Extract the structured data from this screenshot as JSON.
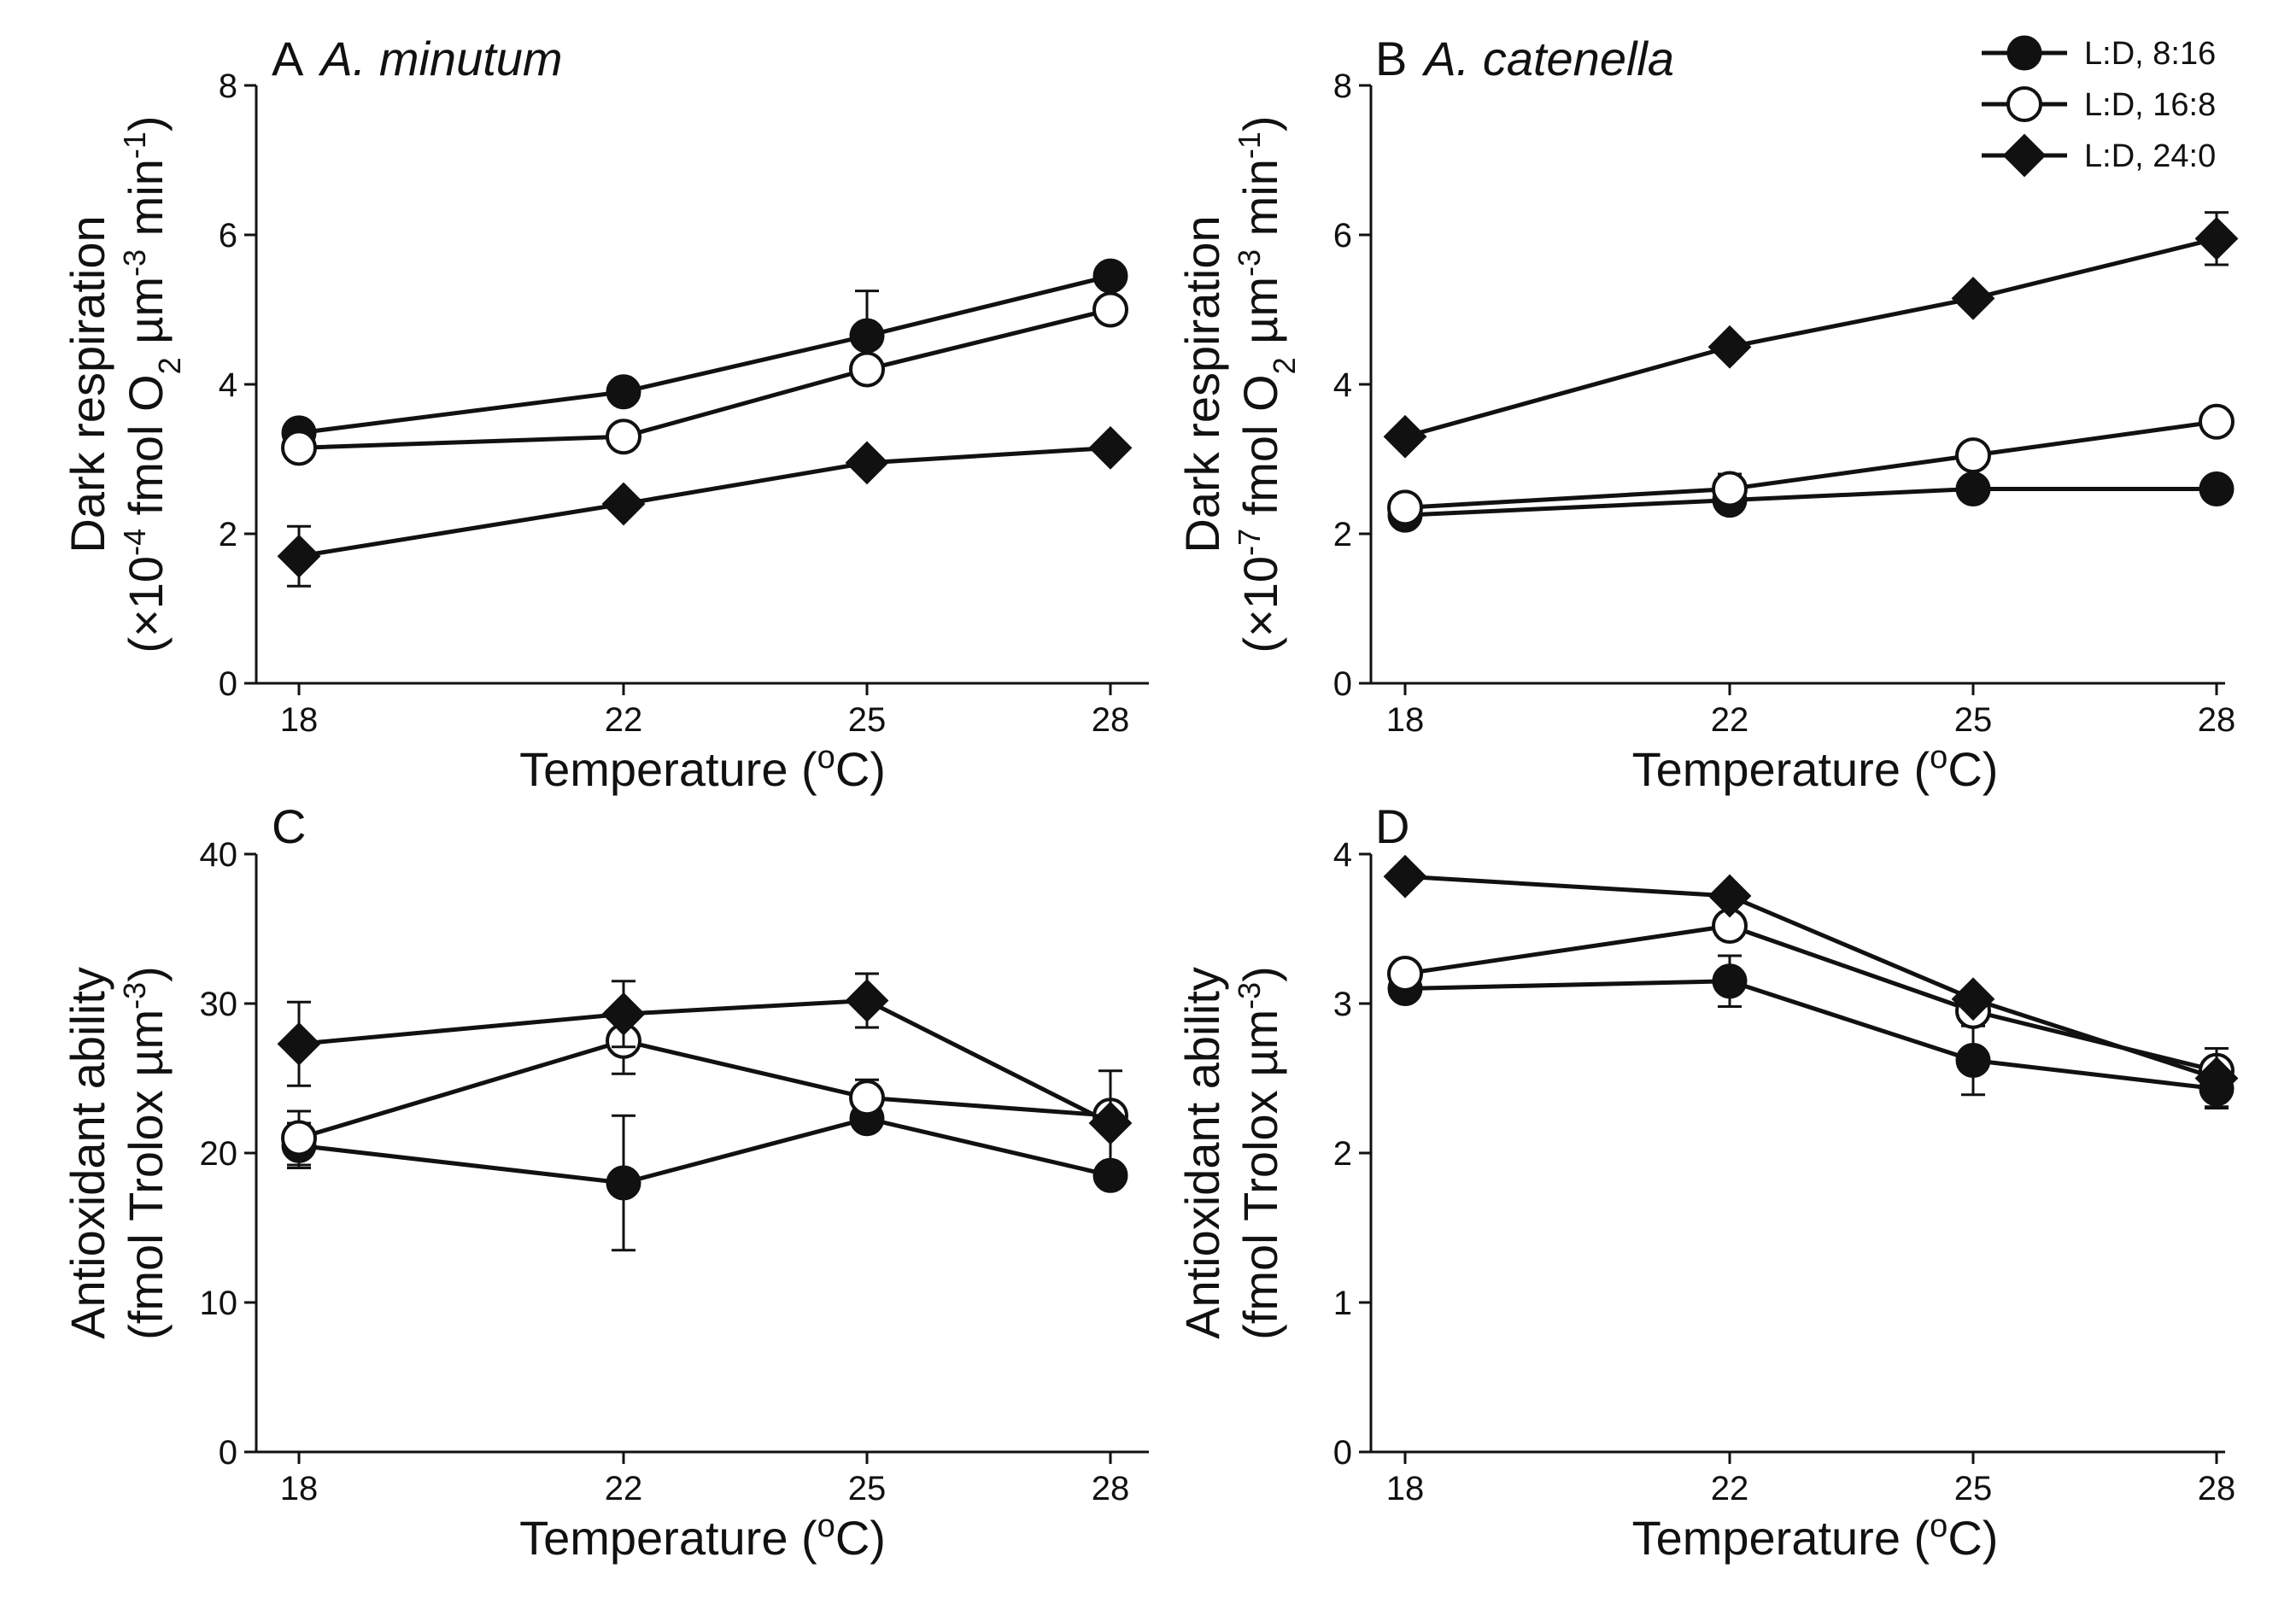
{
  "legend": {
    "items": [
      {
        "label": "L:D, 8:16",
        "marker": "circle-filled"
      },
      {
        "label": "L:D, 16:8",
        "marker": "circle-open"
      },
      {
        "label": "L:D, 24:0",
        "marker": "diamond-filled"
      }
    ]
  },
  "colors": {
    "ink": "#111111",
    "background": "#ffffff"
  },
  "chart_data": [
    {
      "type": "line",
      "panel": "A",
      "title": "A. minutum",
      "xlabel": "Temperature (oC)",
      "ylabel": [
        "Dark respiration",
        "(×10-4 fmol O2 µm-3 min-1)"
      ],
      "x": [
        18,
        22,
        25,
        28
      ],
      "xticks": [
        18,
        22,
        25,
        28
      ],
      "yticks": [
        0,
        2,
        4,
        6,
        8
      ],
      "ylim": [
        0,
        8
      ],
      "series": [
        {
          "name": "L:D, 8:16",
          "marker": "circle-filled",
          "values": [
            3.35,
            3.9,
            4.65,
            5.45
          ],
          "err": [
            0.05,
            0.05,
            0.6,
            0.05
          ]
        },
        {
          "name": "L:D, 16:8",
          "marker": "circle-open",
          "values": [
            3.15,
            3.3,
            4.2,
            5.0
          ],
          "err": [
            0.05,
            0.05,
            0.05,
            0.05
          ]
        },
        {
          "name": "L:D, 24:0",
          "marker": "diamond-filled",
          "values": [
            1.7,
            2.4,
            2.95,
            3.15
          ],
          "err": [
            0.4,
            0.05,
            0.05,
            0.05
          ]
        }
      ]
    },
    {
      "type": "line",
      "panel": "B",
      "title": "A. catenella",
      "xlabel": "Temperature (oC)",
      "ylabel": [
        "Dark respiration",
        "(×10-7 fmol O2 µm-3 min-1)"
      ],
      "x": [
        18,
        22,
        25,
        28
      ],
      "xticks": [
        18,
        22,
        25,
        28
      ],
      "yticks": [
        0,
        2,
        4,
        6,
        8
      ],
      "ylim": [
        0,
        8
      ],
      "series": [
        {
          "name": "L:D, 8:16",
          "marker": "circle-filled",
          "values": [
            2.25,
            2.45,
            2.6,
            2.6
          ],
          "err": [
            0.05,
            0.05,
            0.05,
            0.05
          ]
        },
        {
          "name": "L:D, 16:8",
          "marker": "circle-open",
          "values": [
            2.35,
            2.6,
            3.05,
            3.5
          ],
          "err": [
            0.05,
            0.2,
            0.05,
            0.05
          ]
        },
        {
          "name": "L:D, 24:0",
          "marker": "diamond-filled",
          "values": [
            3.3,
            4.5,
            5.15,
            5.95
          ],
          "err": [
            0.05,
            0.05,
            0.05,
            0.35
          ]
        }
      ]
    },
    {
      "type": "line",
      "panel": "C",
      "title": "",
      "xlabel": "Temperature (oC)",
      "ylabel": [
        "Antioxidant ability",
        "(fmol Trolox µm-3)"
      ],
      "x": [
        18,
        22,
        25,
        28
      ],
      "xticks": [
        18,
        22,
        25,
        28
      ],
      "yticks": [
        0,
        10,
        20,
        30,
        40
      ],
      "ylim": [
        0,
        40
      ],
      "series": [
        {
          "name": "L:D, 8:16",
          "marker": "circle-filled",
          "values": [
            20.5,
            18.0,
            22.3,
            18.5
          ],
          "err": [
            1.5,
            4.5,
            0.5,
            0.5
          ]
        },
        {
          "name": "L:D, 16:8",
          "marker": "circle-open",
          "values": [
            21.0,
            27.5,
            23.7,
            22.5
          ],
          "err": [
            1.8,
            2.2,
            1.2,
            0.5
          ]
        },
        {
          "name": "L:D, 24:0",
          "marker": "diamond-filled",
          "values": [
            27.3,
            29.3,
            30.2,
            22.0
          ],
          "err": [
            2.8,
            2.2,
            1.8,
            3.5
          ]
        }
      ]
    },
    {
      "type": "line",
      "panel": "D",
      "title": "",
      "xlabel": "Temperature (oC)",
      "ylabel": [
        "Antioxidant ability",
        "(fmol Trolox µm-3)"
      ],
      "x": [
        18,
        22,
        25,
        28
      ],
      "xticks": [
        18,
        22,
        25,
        28
      ],
      "yticks": [
        0,
        1,
        2,
        3,
        4
      ],
      "ylim": [
        0,
        4
      ],
      "series": [
        {
          "name": "L:D, 8:16",
          "marker": "circle-filled",
          "values": [
            3.1,
            3.15,
            2.62,
            2.43
          ],
          "err": [
            0.05,
            0.17,
            0.23,
            0.12
          ]
        },
        {
          "name": "L:D, 16:8",
          "marker": "circle-open",
          "values": [
            3.2,
            3.52,
            2.95,
            2.55
          ],
          "err": [
            0.05,
            0.08,
            0.08,
            0.05
          ]
        },
        {
          "name": "L:D, 24:0",
          "marker": "diamond-filled",
          "values": [
            3.85,
            3.72,
            3.03,
            2.5
          ],
          "err": [
            0.03,
            0.03,
            0.03,
            0.2
          ]
        }
      ]
    }
  ]
}
